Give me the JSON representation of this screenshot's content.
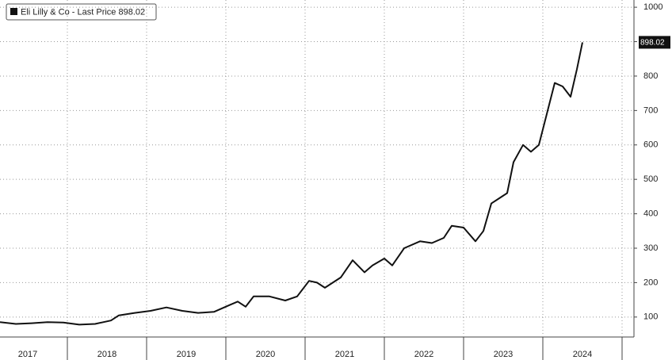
{
  "chart_data": {
    "type": "line",
    "x": [
      2017.15,
      2017.35,
      2017.55,
      2017.75,
      2017.95,
      2018.15,
      2018.35,
      2018.55,
      2018.65,
      2018.85,
      2019.05,
      2019.25,
      2019.45,
      2019.65,
      2019.85,
      2020.05,
      2020.15,
      2020.25,
      2020.35,
      2020.55,
      2020.75,
      2020.9,
      2021.05,
      2021.15,
      2021.25,
      2021.45,
      2021.6,
      2021.75,
      2021.85,
      2022.0,
      2022.1,
      2022.25,
      2022.45,
      2022.6,
      2022.75,
      2022.85,
      2023.0,
      2023.15,
      2023.25,
      2023.35,
      2023.55,
      2023.63,
      2023.75,
      2023.85,
      2023.95,
      2024.05,
      2024.15,
      2024.25,
      2024.35,
      2024.43,
      2024.5
    ],
    "series": [
      {
        "name": "Eli Lilly & Co - Last Price 898.02",
        "color": "#111111",
        "last_label": "898.02",
        "values": [
          85,
          80,
          82,
          85,
          84,
          78,
          80,
          90,
          105,
          112,
          118,
          128,
          118,
          112,
          115,
          135,
          145,
          130,
          160,
          160,
          148,
          160,
          205,
          200,
          185,
          215,
          265,
          230,
          250,
          270,
          250,
          300,
          320,
          315,
          330,
          365,
          360,
          320,
          350,
          430,
          460,
          550,
          600,
          580,
          600,
          690,
          780,
          770,
          740,
          820,
          898.02
        ]
      }
    ],
    "xlim": [
      2017.15,
      2025.15
    ],
    "xticks": [
      {
        "value": 2017.5,
        "label": "2017"
      },
      {
        "value": 2018.5,
        "label": "2018"
      },
      {
        "value": 2019.5,
        "label": "2019"
      },
      {
        "value": 2020.5,
        "label": "2020"
      },
      {
        "value": 2021.5,
        "label": "2021"
      },
      {
        "value": 2022.5,
        "label": "2022"
      },
      {
        "value": 2023.5,
        "label": "2023"
      },
      {
        "value": 2024.5,
        "label": "2024"
      }
    ],
    "ylim": [
      42,
      1021
    ],
    "yticks": [
      100,
      200,
      300,
      400,
      500,
      600,
      700,
      800,
      900,
      1000
    ],
    "grid": true
  }
}
